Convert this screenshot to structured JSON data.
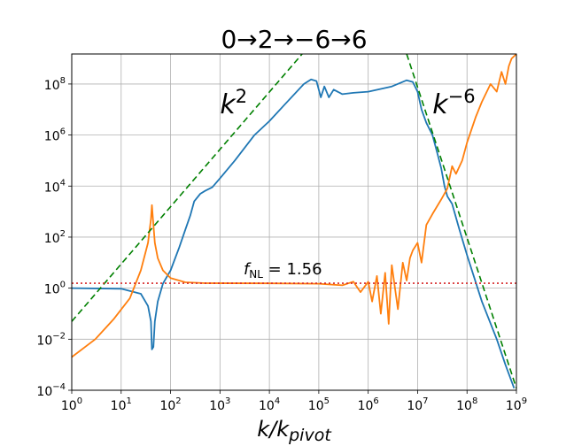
{
  "chart_data": {
    "type": "line",
    "title": "0→2→−6→6",
    "xlabel": "k/k_pivot",
    "ylabel": "",
    "xscale": "log",
    "yscale": "log",
    "xlim": [
      1,
      1000000000
    ],
    "ylim": [
      0.0001,
      1500000000
    ],
    "grid": true,
    "x_ticks": [
      {
        "value": 1,
        "base": "10",
        "exp": "0"
      },
      {
        "value": 10,
        "base": "10",
        "exp": "1"
      },
      {
        "value": 100,
        "base": "10",
        "exp": "2"
      },
      {
        "value": 1000,
        "base": "10",
        "exp": "3"
      },
      {
        "value": 10000,
        "base": "10",
        "exp": "4"
      },
      {
        "value": 100000,
        "base": "10",
        "exp": "5"
      },
      {
        "value": 1000000,
        "base": "10",
        "exp": "6"
      },
      {
        "value": 10000000,
        "base": "10",
        "exp": "7"
      },
      {
        "value": 100000000,
        "base": "10",
        "exp": "8"
      },
      {
        "value": 1000000000,
        "base": "10",
        "exp": "9"
      }
    ],
    "y_ticks": [
      {
        "value": 0.0001,
        "base": "10",
        "exp": "−4"
      },
      {
        "value": 0.01,
        "base": "10",
        "exp": "−2"
      },
      {
        "value": 1,
        "base": "10",
        "exp": "0"
      },
      {
        "value": 100,
        "base": "10",
        "exp": "2"
      },
      {
        "value": 10000,
        "base": "10",
        "exp": "4"
      },
      {
        "value": 1000000,
        "base": "10",
        "exp": "6"
      },
      {
        "value": 100000000,
        "base": "10",
        "exp": "8"
      }
    ],
    "annotations": [
      {
        "id": "k2",
        "base": "k",
        "exp": "2",
        "x": 1000,
        "y": 10000000
      },
      {
        "id": "km6",
        "base": "k",
        "exp": "−6",
        "x": 20000000,
        "y": 10000000
      },
      {
        "id": "fnl",
        "text": "f_NL = 1.56",
        "base": "f",
        "sub": "NL",
        "rest": " = 1.56",
        "x": 3000,
        "y": 3.5
      }
    ],
    "series": [
      {
        "color": "#1f77b4",
        "style": "solid",
        "points": [
          [
            1,
            1.0
          ],
          [
            10,
            0.95
          ],
          [
            25,
            0.6
          ],
          [
            35,
            0.2
          ],
          [
            40,
            0.05
          ],
          [
            42,
            0.004
          ],
          [
            45,
            0.005
          ],
          [
            48,
            0.05
          ],
          [
            55,
            0.3
          ],
          [
            70,
            1.5
          ],
          [
            100,
            5
          ],
          [
            150,
            40
          ],
          [
            200,
            200
          ],
          [
            250,
            700
          ],
          [
            300,
            2500
          ],
          [
            400,
            5000
          ],
          [
            500,
            6500
          ],
          [
            700,
            9000
          ],
          [
            1000,
            20000.0
          ],
          [
            2000,
            100000.0
          ],
          [
            5000,
            1000000.0
          ],
          [
            10000.0,
            3500000.0
          ],
          [
            20000.0,
            15000000.0
          ],
          [
            50000.0,
            100000000.0
          ],
          [
            70000.0,
            150000000.0
          ],
          [
            90000.0,
            130000000.0
          ],
          [
            110000.0,
            30000000.0
          ],
          [
            130000.0,
            80000000.0
          ],
          [
            160000.0,
            30000000.0
          ],
          [
            200000.0,
            60000000.0
          ],
          [
            300000.0,
            40000000.0
          ],
          [
            500000.0,
            45000000.0
          ],
          [
            1000000.0,
            50000000.0
          ],
          [
            3000000.0,
            80000000.0
          ],
          [
            6000000.0,
            140000000.0
          ],
          [
            8000000.0,
            120000000.0
          ],
          [
            10000000.0,
            50000000.0
          ],
          [
            12000000.0,
            10000000.0
          ],
          [
            15000000.0,
            3000000.0
          ],
          [
            20000000.0,
            1000000.0
          ],
          [
            25000000.0,
            200000.0
          ],
          [
            30000000.0,
            50000.0
          ],
          [
            35000000.0,
            10000.0
          ],
          [
            40000000.0,
            4000.0
          ],
          [
            50000000.0,
            2000.0
          ],
          [
            70000000.0,
            200
          ],
          [
            100000000.0,
            20
          ],
          [
            200000000.0,
            0.3
          ],
          [
            400000000.0,
            0.01
          ],
          [
            600000000.0,
            0.001
          ],
          [
            900000000.0,
            0.00012
          ]
        ]
      },
      {
        "color": "#ff7f0e",
        "style": "solid",
        "points": [
          [
            1,
            0.002
          ],
          [
            3,
            0.01
          ],
          [
            7,
            0.06
          ],
          [
            15,
            0.4
          ],
          [
            25,
            5
          ],
          [
            35,
            60
          ],
          [
            40,
            500
          ],
          [
            42,
            1800
          ],
          [
            44,
            500
          ],
          [
            48,
            60
          ],
          [
            55,
            15
          ],
          [
            70,
            5
          ],
          [
            100,
            2.5
          ],
          [
            200,
            1.7
          ],
          [
            500,
            1.57
          ],
          [
            10000.0,
            1.55
          ],
          [
            100000.0,
            1.5
          ],
          [
            300000.0,
            1.3
          ],
          [
            500000.0,
            1.8
          ],
          [
            700000.0,
            0.7
          ],
          [
            1000000.0,
            1.8
          ],
          [
            1200000.0,
            0.3
          ],
          [
            1500000.0,
            3
          ],
          [
            1800000.0,
            0.1
          ],
          [
            2200000.0,
            4
          ],
          [
            2600000.0,
            0.04
          ],
          [
            3000000.0,
            8
          ],
          [
            4000000.0,
            0.15
          ],
          [
            5000000.0,
            10
          ],
          [
            6000000.0,
            2
          ],
          [
            7000000.0,
            15
          ],
          [
            8000000.0,
            30
          ],
          [
            10000000.0,
            60
          ],
          [
            12000000.0,
            10
          ],
          [
            15000000.0,
            300
          ],
          [
            20000000.0,
            800
          ],
          [
            30000000.0,
            3000
          ],
          [
            40000000.0,
            8000
          ],
          [
            50000000.0,
            60000.0
          ],
          [
            60000000.0,
            30000.0
          ],
          [
            80000000.0,
            100000.0
          ],
          [
            100000000.0,
            500000.0
          ],
          [
            150000000.0,
            5000000.0
          ],
          [
            200000000.0,
            20000000.0
          ],
          [
            300000000.0,
            100000000.0
          ],
          [
            400000000.0,
            50000000.0
          ],
          [
            500000000.0,
            300000000.0
          ],
          [
            600000000.0,
            100000000.0
          ],
          [
            700000000.0,
            500000000.0
          ],
          [
            800000000.0,
            1000000000.0
          ],
          [
            1000000000.0,
            1500000000.0
          ]
        ]
      },
      {
        "color": "#008000",
        "style": "dashed",
        "points": [
          [
            1,
            0.05
          ],
          [
            46000.0,
            1500000000.0
          ]
        ]
      },
      {
        "color": "#008000",
        "style": "dashed",
        "points": [
          [
            6000000.0,
            1500000000.0
          ],
          [
            1000000000.0,
            0.00012
          ]
        ]
      },
      {
        "color": "#d62728",
        "style": "dotted",
        "points": [
          [
            1,
            1.56
          ],
          [
            1000000000.0,
            1.56
          ]
        ]
      }
    ]
  }
}
